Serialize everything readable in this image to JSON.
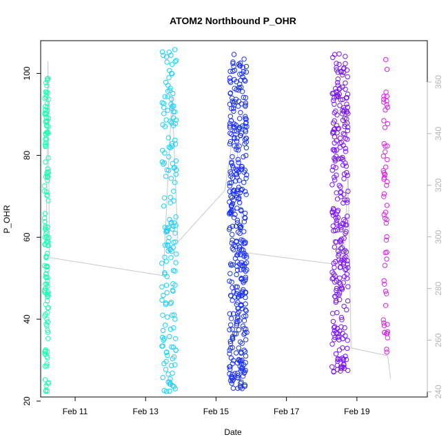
{
  "chart_data": {
    "type": "scatter",
    "title": "ATOM2 Northbound P_OHR",
    "xlabel": "Date",
    "ylabel": "P_OHR",
    "x_axis": {
      "type": "date",
      "range": [
        "2026-02-10T00:30",
        "2026-02-20T23:59"
      ],
      "ticks": [
        {
          "label": "Feb 11",
          "value": "2026-02-11"
        },
        {
          "label": "Feb 13",
          "value": "2026-02-13"
        },
        {
          "label": "Feb 15",
          "value": "2026-02-15"
        },
        {
          "label": "Feb 17",
          "value": "2026-02-17"
        },
        {
          "label": "Feb 19",
          "value": "2026-02-19"
        }
      ]
    },
    "y_axis_left": {
      "range": [
        21,
        108
      ],
      "ticks": [
        20,
        40,
        60,
        80,
        100
      ]
    },
    "y_axis_right": {
      "range": [
        238,
        376
      ],
      "ticks": [
        240,
        260,
        280,
        300,
        320,
        340,
        360
      ],
      "color": "#b4b4b4"
    },
    "secondary_line": {
      "color": "#c8c8c8",
      "axis": "right",
      "points": [
        [
          "2026-02-10T04:30",
          302
        ],
        [
          "2026-02-10T05:30",
          368
        ],
        [
          "2026-02-10T06:30",
          292
        ],
        [
          "2026-02-13T12:00",
          285
        ],
        [
          "2026-02-13T18:00",
          355
        ],
        [
          "2026-02-13T22:00",
          298
        ],
        [
          "2026-02-15T06:00",
          318
        ],
        [
          "2026-02-15T13:00",
          345
        ],
        [
          "2026-02-15T19:00",
          294
        ],
        [
          "2026-02-18T15:00",
          289
        ],
        [
          "2026-02-18T18:00",
          325
        ],
        [
          "2026-02-18T20:00",
          257
        ],
        [
          "2026-02-19T21:00",
          254
        ],
        [
          "2026-02-19T23:00",
          245
        ]
      ]
    },
    "series": [
      {
        "color": "#19ffb2",
        "x_start": "2026-02-10T03:00",
        "x_end": "2026-02-10T06:00",
        "count": 140,
        "y_range": [
          22,
          99
        ]
      },
      {
        "color": "#1ad0ff",
        "x_start": "2026-02-13T11:00",
        "x_end": "2026-02-13T21:00",
        "count": 170,
        "y_range": [
          22,
          106
        ]
      },
      {
        "color": "#1930ff",
        "x_start": "2026-02-15T09:00",
        "x_end": "2026-02-15T21:00",
        "count": 380,
        "y_range": [
          23,
          105
        ]
      },
      {
        "color": "#7a14ff",
        "x_start": "2026-02-18T07:00",
        "x_end": "2026-02-18T18:00",
        "count": 280,
        "y_range": [
          27,
          105
        ]
      },
      {
        "color": "#e11ff0",
        "x_start": "2026-02-19T18:00",
        "x_end": "2026-02-19T21:00",
        "count": 60,
        "y_range": [
          30,
          104
        ]
      }
    ]
  }
}
